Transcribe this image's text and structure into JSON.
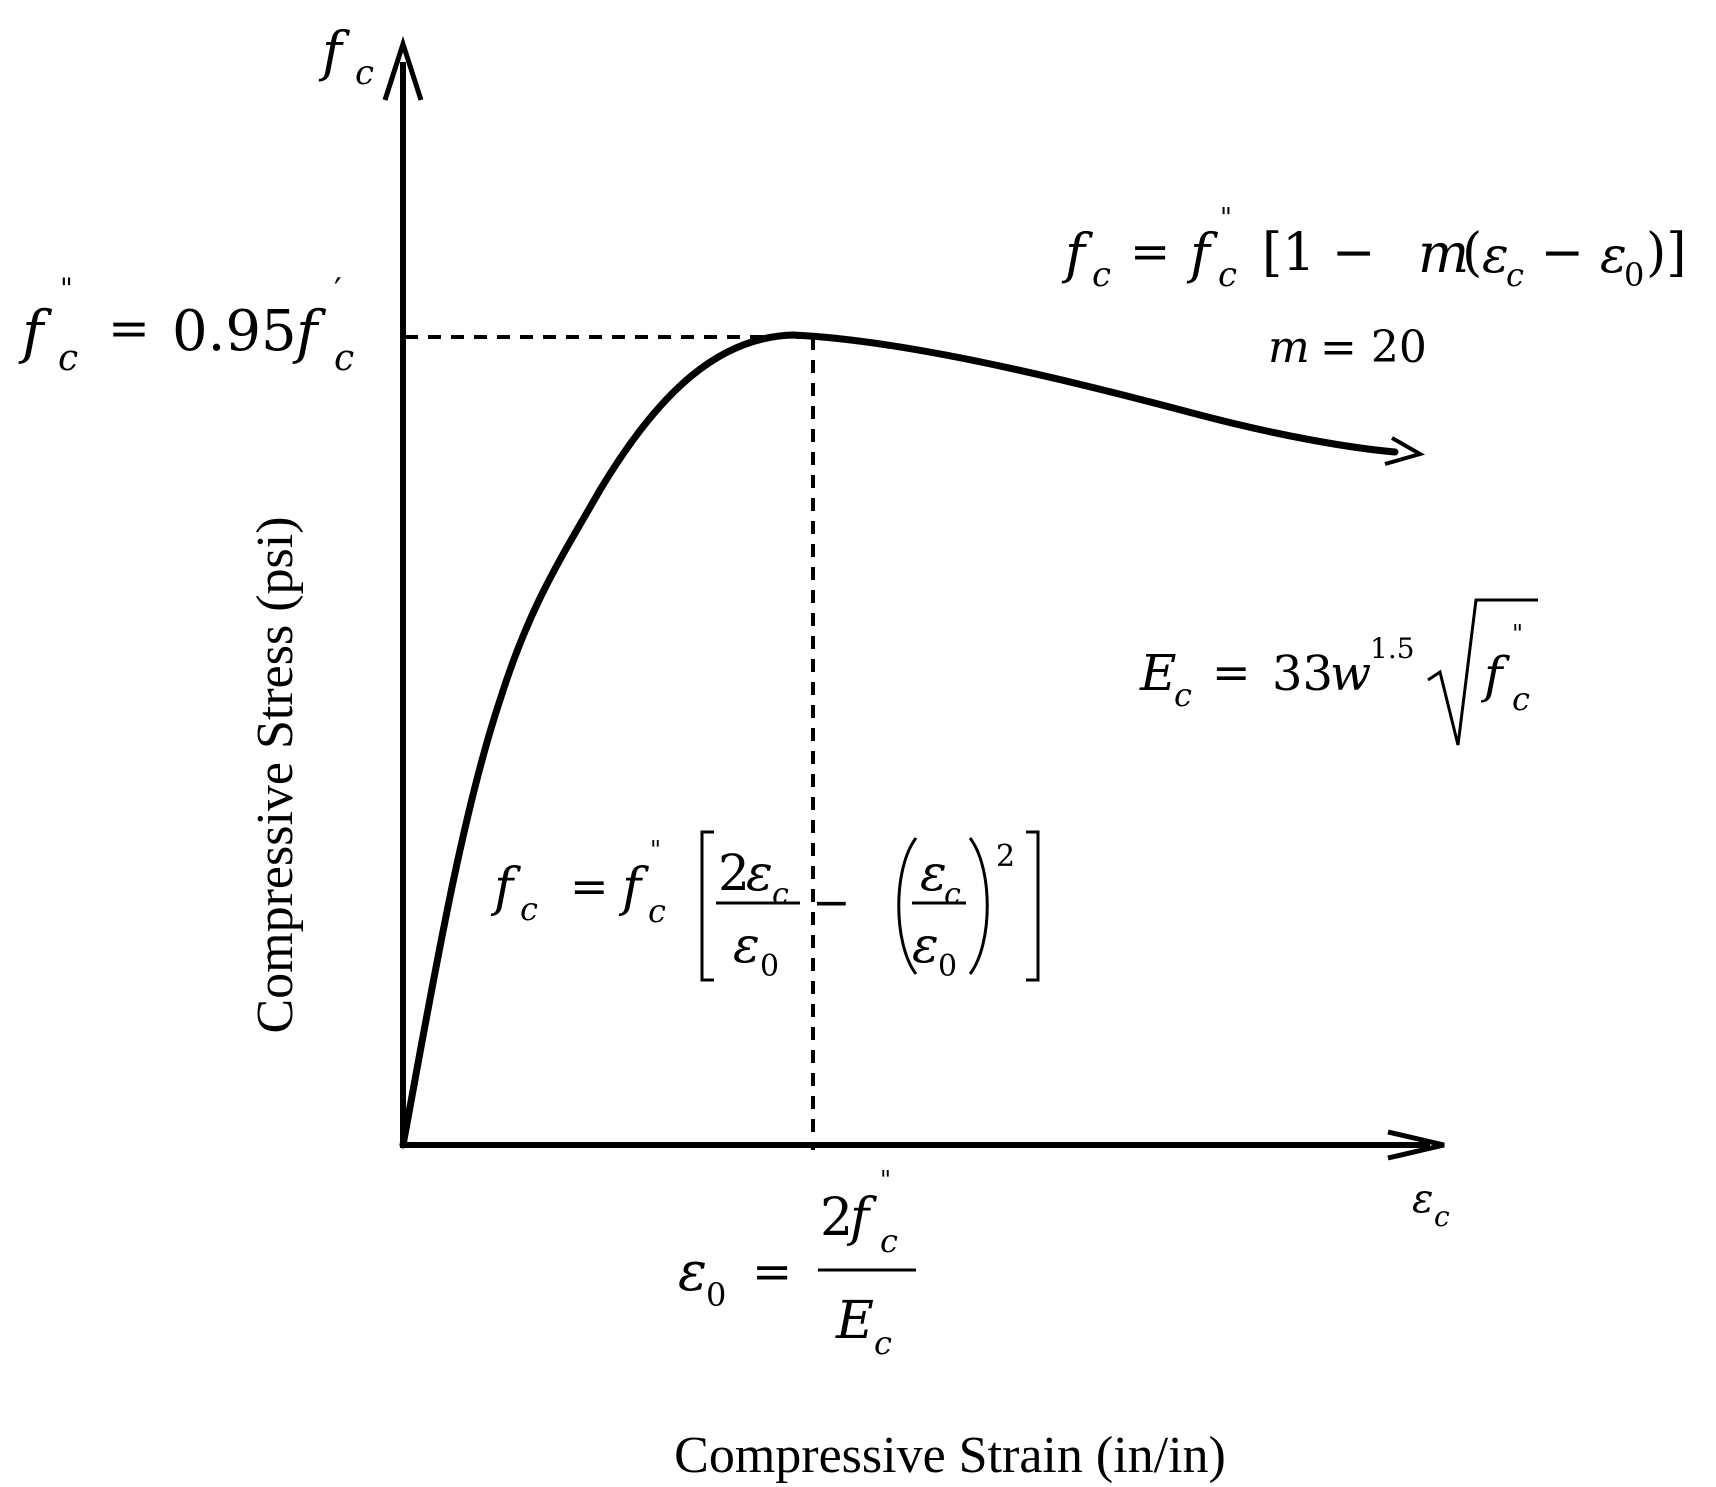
{
  "diagram": {
    "y_axis_symbol": "f",
    "y_axis_symbol_sub": "c",
    "x_axis_symbol": "ε",
    "x_axis_symbol_sub": "c",
    "y_axis_title": "Compressive Stress (psi)",
    "x_axis_title": "Compressive Strain (in/in)",
    "peak_label": {
      "f": "f",
      "double_prime": "\"",
      "sub": "c",
      "eq": "=",
      "coef": "0.95",
      "f2": "f",
      "prime": "′",
      "sub2": "c"
    },
    "descending_eq": {
      "lhs_f": "f",
      "lhs_sub": "c",
      "eq": "=",
      "f": "f",
      "double_prime": "\"",
      "sub": "c",
      "open": "[1 − ",
      "m": "m",
      "paren_open": "(",
      "eps_c": "ε",
      "eps_c_sub": "c",
      "minus": " − ",
      "eps_0": "ε",
      "eps_0_sub": "0",
      "close": ")]"
    },
    "m_eq": {
      "m": "m",
      "rest": " = 20"
    },
    "modulus_eq": {
      "E": "E",
      "E_sub": "c",
      "eq": "=",
      "coef": "33",
      "w": "w",
      "w_exp": "1.5",
      "f": "f",
      "double_prime": "\"",
      "sub": "c"
    },
    "ascending_eq": {
      "lhs_f": "f",
      "lhs_sub": "c",
      "eq": "=",
      "f": "f",
      "double_prime": "\"",
      "sub": "c",
      "num1_coef": "2",
      "num1_eps": "ε",
      "num1_sub": "c",
      "den1_eps": "ε",
      "den1_sub": "0",
      "minus": "−",
      "num2_eps": "ε",
      "num2_sub": "c",
      "den2_eps": "ε",
      "den2_sub": "0",
      "exp": "2"
    },
    "strain_eq": {
      "eps": "ε",
      "eps_sub": "0",
      "eq": "=",
      "num_coef": "2",
      "num_f": "f",
      "num_double_prime": "\"",
      "num_sub": "c",
      "den_E": "E",
      "den_sub": "c"
    }
  }
}
